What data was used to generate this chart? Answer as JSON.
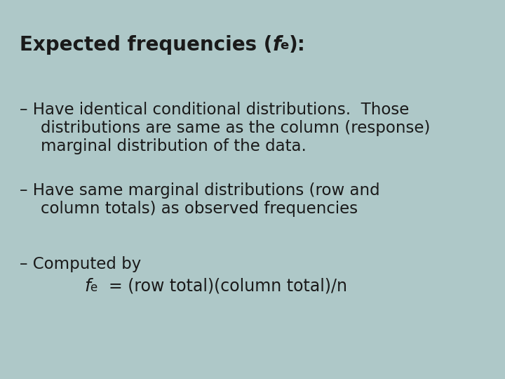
{
  "background_color": "#aec8c8",
  "text_color": "#1a1a1a",
  "title_fontsize": 20,
  "body_fontsize": 16.5,
  "formula_fontsize": 17,
  "title_normal": "Expected frequencies (",
  "title_italic_f": "f",
  "title_sub_e": "e",
  "title_end": "):",
  "bullet1_line1": "– Have identical conditional distributions.  Those",
  "bullet1_line2": "distributions are same as the column (response)",
  "bullet1_line3": "marginal distribution of the data.",
  "bullet2_line1": "– Have same marginal distributions (row and",
  "bullet2_line2": "column totals) as observed frequencies",
  "bullet3_line1": "– Computed by",
  "formula_f": "f",
  "formula_e": "e",
  "formula_rest": "  = (row total)(column total)/n"
}
